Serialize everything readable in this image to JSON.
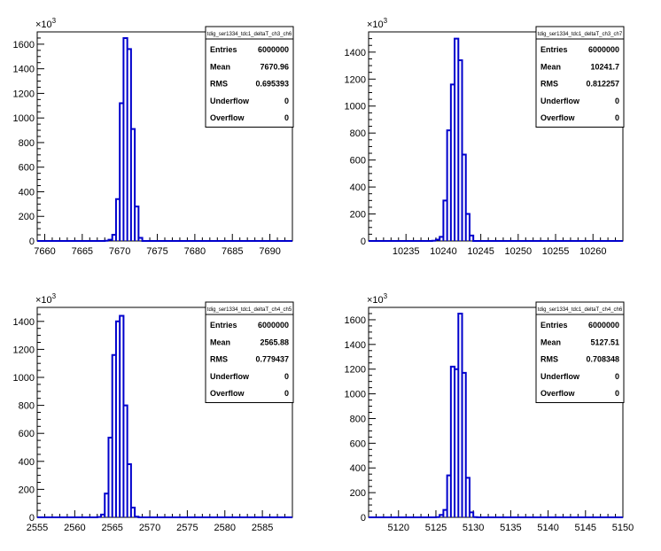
{
  "canvas": {
    "background": "#ffffff",
    "line_color": "#0000cc",
    "axis_color": "#000000"
  },
  "chart_data": [
    {
      "type": "histogram",
      "title": "tdig_ser1334_tdc1_deltaT_ch3_ch6",
      "exponent_label": "×10",
      "exponent": "3",
      "xlim": [
        7659,
        7693
      ],
      "ylim": [
        0,
        1700
      ],
      "xticks": [
        "7660",
        "7665",
        "7670",
        "7675",
        "7680",
        "7685",
        "7690"
      ],
      "yticks": [
        "0",
        "200",
        "400",
        "600",
        "800",
        "1000",
        "1200",
        "1400",
        "1600"
      ],
      "bin_width": 0.5,
      "bins_x": [
        7668.0,
        7668.5,
        7669.0,
        7669.5,
        7670.0,
        7670.5,
        7671.0,
        7671.5,
        7672.0,
        7672.5,
        7673.0
      ],
      "bins_y": [
        2,
        10,
        50,
        340,
        1120,
        1650,
        1560,
        910,
        280,
        25,
        0
      ],
      "stats": {
        "labels": [
          "Entries",
          "Mean",
          "RMS",
          "Underflow",
          "Overflow"
        ],
        "values": [
          "6000000",
          "7670.96",
          "0.695393",
          "0",
          "0"
        ]
      }
    },
    {
      "type": "histogram",
      "title": "tdig_ser1334_tdc1_deltaT_ch3_ch7",
      "exponent_label": "×10",
      "exponent": "3",
      "xlim": [
        10230,
        10264
      ],
      "ylim": [
        0,
        1550
      ],
      "xticks": [
        "10235",
        "10240",
        "10245",
        "10250",
        "10255",
        "10260"
      ],
      "yticks": [
        "0",
        "200",
        "400",
        "600",
        "800",
        "1000",
        "1200",
        "1400"
      ],
      "bin_width": 0.5,
      "bins_x": [
        10238.5,
        10239.0,
        10239.5,
        10240.0,
        10240.5,
        10241.0,
        10241.5,
        10242.0,
        10242.5,
        10243.0,
        10243.5,
        10244.0
      ],
      "bins_y": [
        2,
        10,
        30,
        300,
        820,
        1160,
        1500,
        1340,
        640,
        200,
        40,
        0
      ],
      "stats": {
        "labels": [
          "Entries",
          "Mean",
          "RMS",
          "Underflow",
          "Overflow"
        ],
        "values": [
          "6000000",
          "10241.7",
          "0.812257",
          "0",
          "0"
        ]
      }
    },
    {
      "type": "histogram",
      "title": "tdig_ser1334_tdc1_deltaT_ch4_ch5",
      "exponent_label": "×10",
      "exponent": "3",
      "xlim": [
        2555,
        2589
      ],
      "ylim": [
        0,
        1500
      ],
      "xticks": [
        "2555",
        "2560",
        "2565",
        "2570",
        "2575",
        "2580",
        "2585"
      ],
      "yticks": [
        "0",
        "200",
        "400",
        "600",
        "800",
        "1000",
        "1200",
        "1400"
      ],
      "bin_width": 0.5,
      "bins_x": [
        2563.0,
        2563.5,
        2564.0,
        2564.5,
        2565.0,
        2565.5,
        2566.0,
        2566.5,
        2567.0,
        2567.5,
        2568.0
      ],
      "bins_y": [
        2,
        20,
        170,
        570,
        1160,
        1400,
        1440,
        800,
        380,
        70,
        5
      ],
      "stats": {
        "labels": [
          "Entries",
          "Mean",
          "RMS",
          "Underflow",
          "Overflow"
        ],
        "values": [
          "6000000",
          "2565.88",
          "0.779437",
          "0",
          "0"
        ]
      }
    },
    {
      "type": "histogram",
      "title": "tdig_ser1334_tdc1_deltaT_ch4_ch6",
      "exponent_label": "×10",
      "exponent": "3",
      "xlim": [
        5116,
        5150
      ],
      "ylim": [
        0,
        1700
      ],
      "xticks": [
        "5120",
        "5125",
        "5130",
        "5135",
        "5140",
        "5145",
        "5150"
      ],
      "yticks": [
        "0",
        "200",
        "400",
        "600",
        "800",
        "1000",
        "1200",
        "1400",
        "1600"
      ],
      "bin_width": 0.5,
      "bins_x": [
        5125.0,
        5125.5,
        5126.0,
        5126.5,
        5127.0,
        5127.5,
        5128.0,
        5128.5,
        5129.0,
        5129.5,
        5130.0
      ],
      "bins_y": [
        2,
        20,
        60,
        340,
        1220,
        1200,
        1650,
        1170,
        320,
        40,
        2
      ],
      "stats": {
        "labels": [
          "Entries",
          "Mean",
          "RMS",
          "Underflow",
          "Overflow"
        ],
        "values": [
          "6000000",
          "5127.51",
          "0.708348",
          "0",
          "0"
        ]
      }
    }
  ]
}
